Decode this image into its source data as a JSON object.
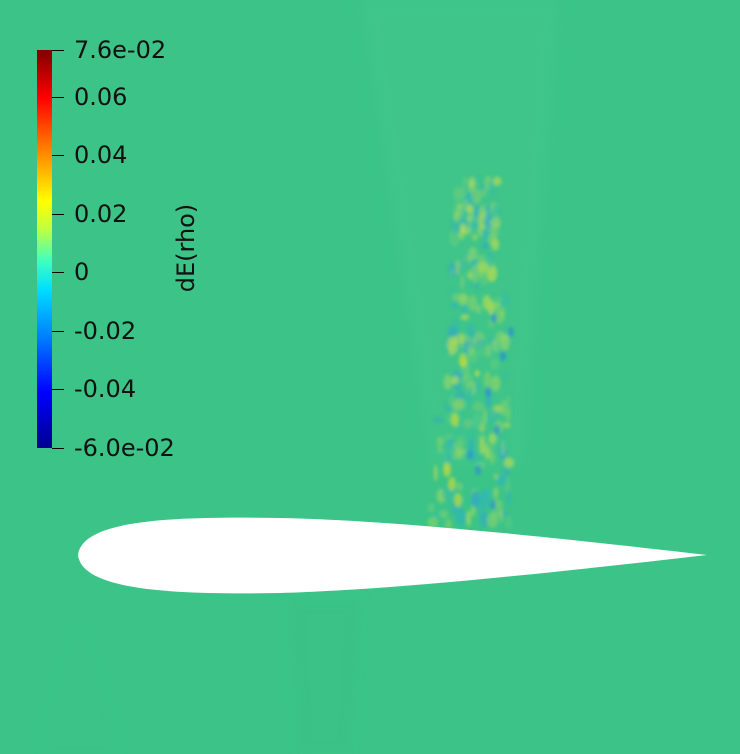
{
  "view": {
    "background_color": "#3cc488",
    "airfoil_color": "#ffffff"
  },
  "colorbar": {
    "title": "dE(rho)",
    "colormap": "jet",
    "range": [
      -0.06,
      0.076
    ],
    "ticks": [
      {
        "value": 0.076,
        "label": "7.6e-02"
      },
      {
        "value": 0.06,
        "label": "0.06"
      },
      {
        "value": 0.04,
        "label": "0.04"
      },
      {
        "value": 0.02,
        "label": "0.02"
      },
      {
        "value": 0,
        "label": "0"
      },
      {
        "value": -0.02,
        "label": "-0.02"
      },
      {
        "value": -0.04,
        "label": "-0.04"
      },
      {
        "value": -0.06,
        "label": "-6.0e-02"
      }
    ]
  }
}
